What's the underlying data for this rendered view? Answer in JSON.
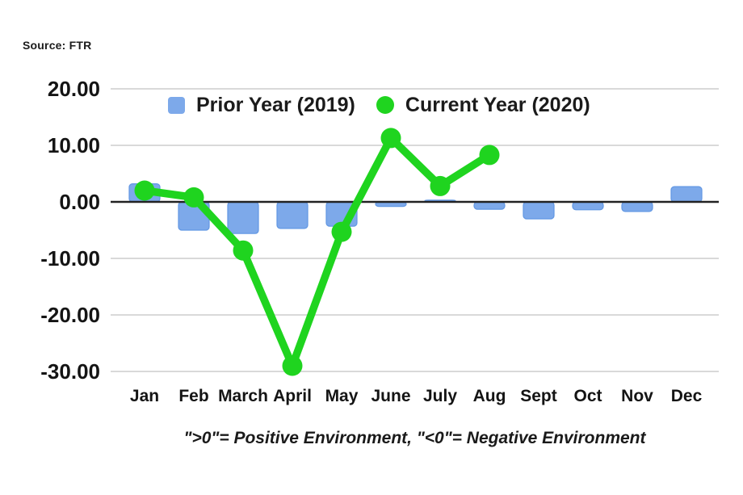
{
  "source_label": "Source: FTR",
  "legend": {
    "items": [
      {
        "label": "Prior Year (2019)",
        "swatch": "square-icon",
        "color": "#7da9ea"
      },
      {
        "label": "Current Year (2020)",
        "swatch": "circle-icon",
        "color": "#1fd41f"
      }
    ]
  },
  "caption": "\">0\"= Positive Environment, \"<0\"= Negative Environment",
  "chart_data": {
    "type": "bar",
    "subtype": "bar-with-line-overlay",
    "categories": [
      "Jan",
      "Feb",
      "March",
      "April",
      "May",
      "June",
      "July",
      "Aug",
      "Sept",
      "Oct",
      "Nov",
      "Dec"
    ],
    "series": [
      {
        "name": "Prior Year (2019)",
        "type": "bar",
        "color": "#7da9ea",
        "border_color": "#6197e3",
        "values": [
          3.2,
          -5.0,
          -5.6,
          -4.7,
          -4.3,
          -0.8,
          0.3,
          -1.3,
          -3.0,
          -1.4,
          -1.7,
          2.7
        ]
      },
      {
        "name": "Current Year (2020)",
        "type": "line",
        "color": "#1fd41f",
        "values": [
          2.0,
          0.8,
          -8.6,
          -29.0,
          -5.3,
          11.3,
          2.8,
          8.3,
          null,
          null,
          null,
          null
        ]
      }
    ],
    "title": "",
    "xlabel": "",
    "ylabel": "",
    "ylim": [
      -30,
      20
    ],
    "y_ticks": [
      20,
      10,
      0,
      -10,
      -20,
      -30
    ],
    "y_tick_labels": [
      "20.00",
      "10.00",
      "0.00",
      "-10.00",
      "-20.00",
      "-30.00"
    ],
    "grid": "horizontal",
    "grid_color": "#d9d9d9",
    "zero_line_color": "#222222",
    "axis_text_color": "#141414",
    "legend_position": "top-center"
  }
}
